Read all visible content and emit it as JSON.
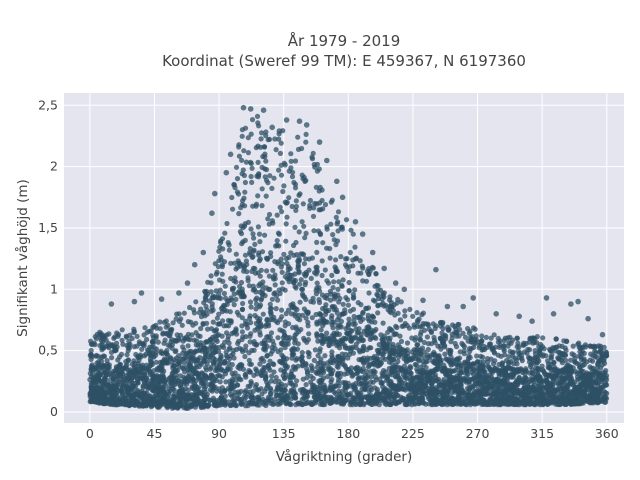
{
  "chart_data": {
    "type": "scatter",
    "title_line1": "År 1979 - 2019",
    "title_line2": "Koordinat (Sweref 99 TM): E 459367, N 6197360",
    "xlabel": "Vågriktning (grader)",
    "ylabel": "Signifikant våghöjd (m)",
    "xlim": [
      -18,
      372
    ],
    "ylim": [
      -0.09,
      2.6
    ],
    "x_ticks": [
      0,
      45,
      90,
      135,
      180,
      225,
      270,
      315,
      360
    ],
    "x_tick_labels": [
      "0",
      "45",
      "90",
      "135",
      "180",
      "225",
      "270",
      "315",
      "360"
    ],
    "y_ticks": [
      0,
      0.5,
      1,
      1.5,
      2,
      2.5
    ],
    "y_tick_labels": [
      "0",
      "0,5",
      "1",
      "1,5",
      "2",
      "2,5"
    ],
    "grid": true,
    "marker_color": "#2e5066",
    "plot_background": "#e5e5f0",
    "envelope": {
      "direction": [
        0,
        15,
        30,
        45,
        60,
        75,
        85,
        95,
        100,
        105,
        110,
        115,
        120,
        125,
        130,
        135,
        140,
        145,
        150,
        155,
        160,
        165,
        170,
        180,
        190,
        200,
        210,
        225,
        240,
        255,
        270,
        285,
        300,
        315,
        330,
        345,
        360
      ],
      "upper_height": [
        0.65,
        0.66,
        0.68,
        0.72,
        0.8,
        0.92,
        1.15,
        1.55,
        1.9,
        2.3,
        2.45,
        2.47,
        2.44,
        2.3,
        2.25,
        2.3,
        2.35,
        2.33,
        2.28,
        2.2,
        2.05,
        1.9,
        1.75,
        1.55,
        1.35,
        1.12,
        0.95,
        0.85,
        0.78,
        0.72,
        0.68,
        0.62,
        0.6,
        0.62,
        0.6,
        0.55,
        0.55
      ],
      "lower_height": [
        0.08,
        0.06,
        0.05,
        0.04,
        0.03,
        0.03,
        0.05,
        0.05,
        0.05,
        0.05,
        0.05,
        0.06,
        0.05,
        0.05,
        0.05,
        0.06,
        0.06,
        0.06,
        0.06,
        0.06,
        0.06,
        0.06,
        0.06,
        0.06,
        0.06,
        0.06,
        0.06,
        0.06,
        0.06,
        0.06,
        0.06,
        0.06,
        0.06,
        0.06,
        0.06,
        0.07,
        0.08
      ]
    },
    "outliers": [
      {
        "x": 15,
        "y": 0.88
      },
      {
        "x": 31,
        "y": 0.9
      },
      {
        "x": 36,
        "y": 0.97
      },
      {
        "x": 50,
        "y": 0.92
      },
      {
        "x": 62,
        "y": 0.97
      },
      {
        "x": 68,
        "y": 1.05
      },
      {
        "x": 73,
        "y": 1.2
      },
      {
        "x": 79,
        "y": 1.3
      },
      {
        "x": 85,
        "y": 1.62
      },
      {
        "x": 87,
        "y": 1.78
      },
      {
        "x": 95,
        "y": 1.95
      },
      {
        "x": 98,
        "y": 2.1
      },
      {
        "x": 107,
        "y": 2.48
      },
      {
        "x": 112,
        "y": 2.47
      },
      {
        "x": 121,
        "y": 2.46
      },
      {
        "x": 127,
        "y": 2.32
      },
      {
        "x": 132,
        "y": 2.29
      },
      {
        "x": 137,
        "y": 2.38
      },
      {
        "x": 146,
        "y": 2.37
      },
      {
        "x": 151,
        "y": 2.34
      },
      {
        "x": 160,
        "y": 2.2
      },
      {
        "x": 165,
        "y": 2.05
      },
      {
        "x": 172,
        "y": 1.88
      },
      {
        "x": 176,
        "y": 1.75
      },
      {
        "x": 185,
        "y": 1.55
      },
      {
        "x": 190,
        "y": 1.45
      },
      {
        "x": 197,
        "y": 1.3
      },
      {
        "x": 205,
        "y": 1.17
      },
      {
        "x": 213,
        "y": 1.05
      },
      {
        "x": 219,
        "y": 1.0
      },
      {
        "x": 232,
        "y": 0.91
      },
      {
        "x": 241,
        "y": 1.16
      },
      {
        "x": 249,
        "y": 0.86
      },
      {
        "x": 260,
        "y": 0.86
      },
      {
        "x": 267,
        "y": 0.93
      },
      {
        "x": 283,
        "y": 0.8
      },
      {
        "x": 299,
        "y": 0.78
      },
      {
        "x": 308,
        "y": 0.74
      },
      {
        "x": 318,
        "y": 0.93
      },
      {
        "x": 323,
        "y": 0.8
      },
      {
        "x": 335,
        "y": 0.88
      },
      {
        "x": 340,
        "y": 0.9
      },
      {
        "x": 347,
        "y": 0.76
      },
      {
        "x": 357,
        "y": 0.63
      }
    ]
  }
}
